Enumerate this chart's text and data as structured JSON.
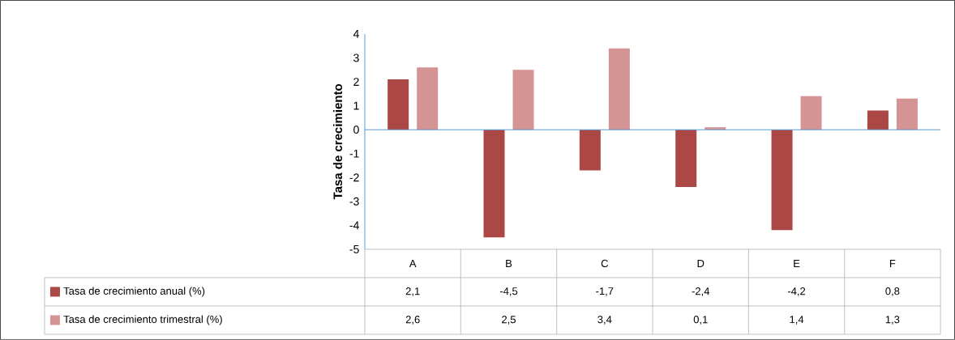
{
  "chart_data": {
    "type": "bar",
    "ylabel": "Tasa de crecimiento",
    "categories": [
      "A",
      "B",
      "C",
      "D",
      "E",
      "F"
    ],
    "series": [
      {
        "name": "Tasa de crecimiento anual (%)",
        "color": "#ab4845",
        "values": [
          2.1,
          -4.5,
          -1.7,
          -2.4,
          -4.2,
          0.8
        ],
        "value_labels": [
          "2,1",
          "-4,5",
          "-1,7",
          "-2,4",
          "-4,2",
          "0,8"
        ]
      },
      {
        "name": "Tasa de crecimiento trimestral (%)",
        "color": "#d49494",
        "values": [
          2.6,
          2.5,
          3.4,
          0.1,
          1.4,
          1.3
        ],
        "value_labels": [
          "2,6",
          "2,5",
          "3,4",
          "0,1",
          "1,4",
          "1,3"
        ]
      }
    ],
    "ylim": [
      -5,
      4
    ],
    "yticks": [
      -5,
      -4,
      -3,
      -2,
      -1,
      0,
      1,
      2,
      3,
      4
    ],
    "legend": "bottom",
    "ref_lines": [
      {
        "axis": "y",
        "value": 0,
        "color": "#5b9bd5"
      }
    ]
  }
}
